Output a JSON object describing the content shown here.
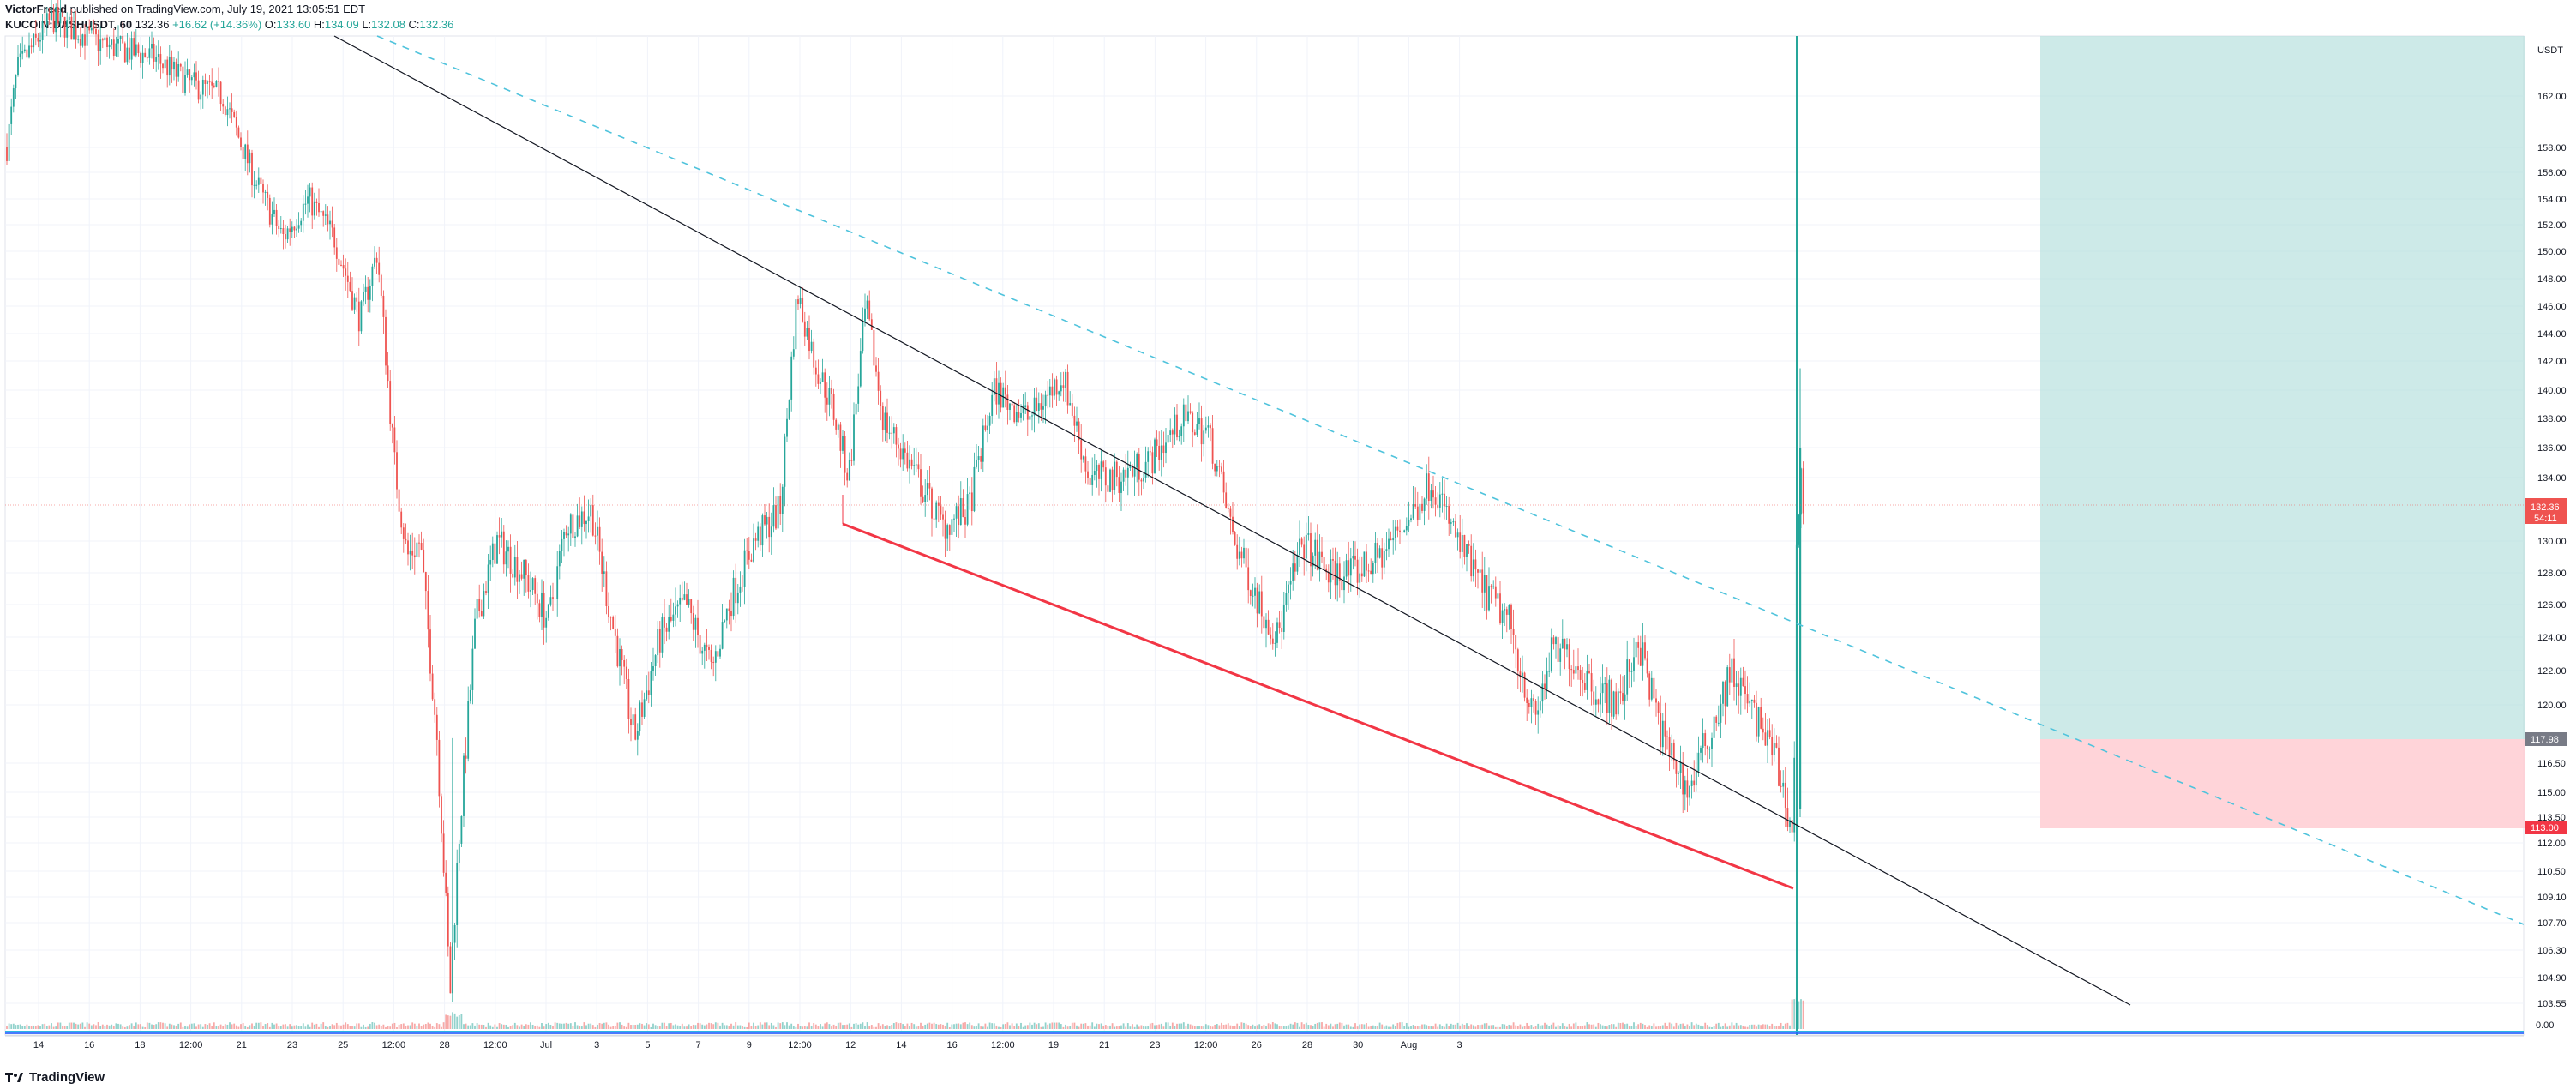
{
  "header": {
    "author": "VictorFreed",
    "published_text": "published on TradingView.com, July 19, 2021 13:05:51 EDT",
    "symbol": "KUCOIN:DASHUSDT, 60",
    "last": "132.36",
    "change": "+16.62 (+14.36%)",
    "ohlc": {
      "o_label": "O:",
      "o": "133.60",
      "h_label": "H:",
      "h": "134.09",
      "l_label": "L:",
      "l": "132.08",
      "c_label": "C:",
      "c": "132.36"
    }
  },
  "price_axis": {
    "currency": "USDT",
    "ticks": [
      "162.00",
      "158.00",
      "156.00",
      "154.00",
      "152.00",
      "150.00",
      "148.00",
      "146.00",
      "144.00",
      "142.00",
      "140.00",
      "138.00",
      "136.00",
      "134.00",
      "130.00",
      "128.00",
      "126.00",
      "124.00",
      "122.00",
      "120.00",
      "116.50",
      "115.00",
      "113.50",
      "112.00",
      "110.50",
      "109.10",
      "107.70",
      "106.30",
      "104.90",
      "103.55"
    ],
    "current_price": "132.36",
    "countdown": "54:11",
    "long_target_price": "117.98",
    "stop_price": "113.00",
    "volume_zero": "0.00"
  },
  "time_axis": {
    "labels": [
      "14",
      "16",
      "18",
      "12:00",
      "21",
      "23",
      "25",
      "12:00",
      "28",
      "12:00",
      "Jul",
      "3",
      "5",
      "7",
      "9",
      "12:00",
      "12",
      "14",
      "16",
      "12:00",
      "19",
      "21",
      "23",
      "12:00",
      "26",
      "28",
      "30",
      "Aug",
      "3"
    ]
  },
  "colors": {
    "up": "#26a69a",
    "down": "#ef5350",
    "trendline": "#131722",
    "dashed": "#4fc3dc",
    "support": "#f23645",
    "profit_zone": "#b2dfdb",
    "loss_zone": "#ffcdd2"
  },
  "footer": {
    "brand": "TradingView",
    "logo_icon": "tradingview-logo-icon"
  }
}
